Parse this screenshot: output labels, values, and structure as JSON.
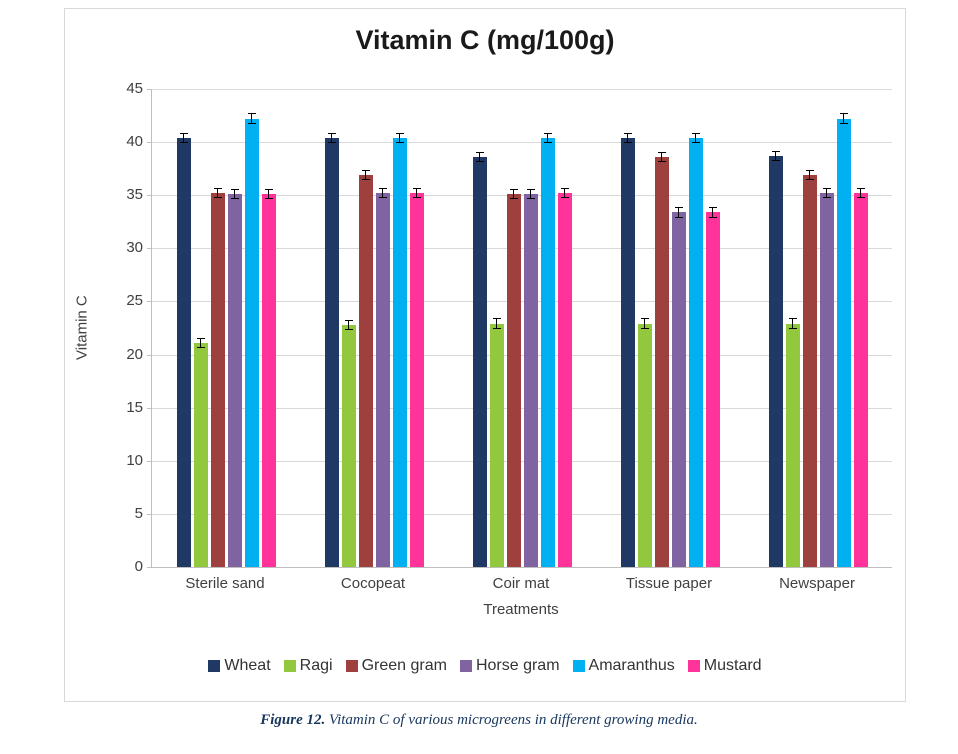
{
  "caption": {
    "label": "Figure 12.",
    "text": " Vitamin C of various microgreens in different growing media."
  },
  "chart_data": {
    "type": "bar",
    "title": "Vitamin C (mg/100g)",
    "xlabel": "Treatments",
    "ylabel": "Vitamin C",
    "ylim": [
      0,
      45
    ],
    "ytick_step": 5,
    "yticks": [
      0,
      5,
      10,
      15,
      20,
      25,
      30,
      35,
      40,
      45
    ],
    "grid": true,
    "legend_position": "bottom",
    "error_bar": 0.5,
    "categories": [
      "Sterile sand",
      "Cocopeat",
      "Coir mat",
      "Tissue paper",
      "Newspaper"
    ],
    "series": [
      {
        "name": "Wheat",
        "color": "#1f3864",
        "values": [
          40.4,
          40.4,
          38.6,
          40.4,
          38.7
        ]
      },
      {
        "name": "Ragi",
        "color": "#92c83e",
        "values": [
          21.1,
          22.8,
          22.9,
          22.9,
          22.9
        ]
      },
      {
        "name": "Green gram",
        "color": "#9e413e",
        "values": [
          35.2,
          36.9,
          35.1,
          38.6,
          36.9
        ]
      },
      {
        "name": "Horse gram",
        "color": "#8064a2",
        "values": [
          35.1,
          35.2,
          35.1,
          33.4,
          35.2
        ]
      },
      {
        "name": "Amaranthus",
        "color": "#00b0f0",
        "values": [
          42.2,
          40.4,
          40.4,
          40.4,
          42.2
        ]
      },
      {
        "name": "Mustard",
        "color": "#ff3399",
        "values": [
          35.1,
          35.2,
          35.2,
          33.4,
          35.2
        ]
      }
    ]
  }
}
